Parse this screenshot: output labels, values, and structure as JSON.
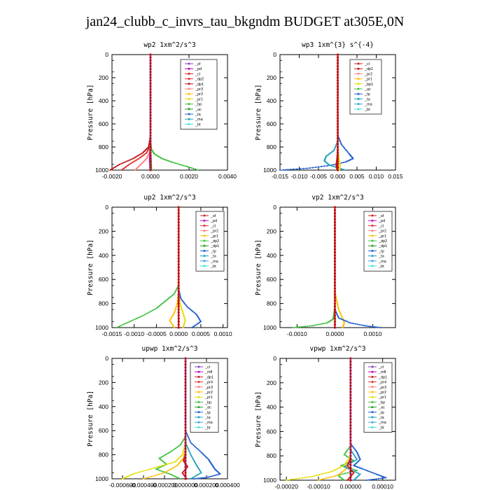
{
  "title": "jan24_clubb_c_invrs_tau_bkgndm  BUDGET at305E,0N",
  "chart_data": [
    {
      "type": "line",
      "title": "wp2   1xm^2/s^3",
      "ylabel": "Pressure  [hPa]",
      "xlim": [
        -0.002,
        0.004
      ],
      "ylim": [
        1000,
        0
      ],
      "xticks": [
        -0.002,
        0.0,
        0.002,
        0.004
      ],
      "xtick_labels": [
        "-0.0020",
        "0.0000",
        "0.0020",
        "0.0040"
      ],
      "yticks": [
        0,
        200,
        400,
        600,
        800,
        1000
      ],
      "legend": [
        "_sf",
        "_pd",
        "_cl",
        "_dp2",
        "_dp1",
        "_pr3",
        "_pr2",
        "_pr1",
        "_bp",
        "_ac",
        "_ta",
        "_ma",
        "_bt"
      ],
      "legend_colors": [
        "#8040c0",
        "#c000c0",
        "#d02020",
        "#e03030",
        "#c01010",
        "#ff8080",
        "#ffc000",
        "#e0e000",
        "#40c040",
        "#20a020",
        "#2060d0",
        "#20a0c0",
        "#40e0e0"
      ],
      "series": [
        {
          "name": "_dp2",
          "color": "#e03030",
          "x": [
            0,
            0,
            -5e-05,
            -0.0002,
            -0.0006,
            -0.0011,
            -0.0015
          ],
          "y": [
            0,
            700,
            800,
            850,
            900,
            950,
            1000
          ]
        },
        {
          "name": "_dp1",
          "color": "#c01010",
          "x": [
            0,
            0,
            -0.0001,
            -0.0004,
            -0.0009,
            -0.0016,
            -0.0021
          ],
          "y": [
            0,
            700,
            800,
            850,
            900,
            950,
            1000
          ]
        },
        {
          "name": "_pr3",
          "color": "#ff8080",
          "x": [
            0,
            0,
            -5e-05,
            -0.0002,
            -0.0005,
            -0.0008
          ],
          "y": [
            0,
            750,
            850,
            900,
            950,
            1000
          ]
        },
        {
          "name": "_bp",
          "color": "#40c040",
          "x": [
            0,
            0,
            5e-05,
            0.0002,
            0.0006,
            0.0011,
            0.0018,
            0.0025
          ],
          "y": [
            0,
            750,
            820,
            860,
            900,
            930,
            965,
            1000
          ]
        },
        {
          "name": "_pd",
          "color": "#c000c0",
          "x": [
            0,
            0,
            -5e-05,
            -2e-05
          ],
          "y": [
            0,
            800,
            900,
            1000
          ]
        },
        {
          "name": "_ac",
          "color": "#20a020",
          "x": [
            0,
            0,
            3e-05,
            5e-05
          ],
          "y": [
            0,
            800,
            900,
            1000
          ]
        },
        {
          "name": "_sf",
          "color": "#8040c0",
          "x": [
            0,
            0
          ],
          "y": [
            0,
            1000
          ]
        }
      ]
    },
    {
      "type": "line",
      "title": "wp3   1xm^{3} s^{-4}",
      "ylabel": "Pressure  [hPa]",
      "xlim": [
        -0.015,
        0.015
      ],
      "ylim": [
        1000,
        0
      ],
      "xticks": [
        -0.015,
        -0.01,
        -0.005,
        0.0,
        0.005,
        0.01,
        0.015
      ],
      "xtick_labels": [
        "-0.015",
        "-0.010",
        "-0.005",
        "0.000",
        "0.005",
        "0.010",
        "0.015"
      ],
      "yticks": [
        0,
        200,
        400,
        600,
        800,
        1000
      ],
      "legend": [
        "_cl",
        "_dp1",
        "_pr2",
        "_pr1",
        "_bp1",
        "_ac",
        "_tp",
        "_ta",
        "_ma",
        "_bt"
      ],
      "legend_colors": [
        "#d02020",
        "#c01010",
        "#ff8080",
        "#ffc000",
        "#e0e000",
        "#40c040",
        "#2060d0",
        "#20a0c0",
        "#40a0e0",
        "#40e0e0"
      ],
      "series": [
        {
          "name": "_tp",
          "color": "#2060d0",
          "x": [
            0,
            0,
            0.001,
            0.003,
            0.004,
            0.002,
            -0.002,
            -0.008,
            -0.015
          ],
          "y": [
            0,
            700,
            780,
            860,
            900,
            930,
            960,
            985,
            1000
          ]
        },
        {
          "name": "_ta",
          "color": "#20a0c0",
          "x": [
            0,
            0,
            -0.001,
            -0.003,
            -0.0035,
            -0.002,
            0.002
          ],
          "y": [
            0,
            750,
            830,
            880,
            920,
            960,
            1000
          ]
        },
        {
          "name": "_bp1",
          "color": "#e0e000",
          "x": [
            0,
            0,
            0.0003,
            0.0006,
            0.0004
          ],
          "y": [
            0,
            800,
            900,
            960,
            1000
          ]
        },
        {
          "name": "_dp1",
          "color": "#c01010",
          "x": [
            0,
            0,
            -0.0002,
            -0.0004,
            -0.0001
          ],
          "y": [
            0,
            800,
            900,
            960,
            1000
          ]
        },
        {
          "name": "_cl",
          "color": "#d02020",
          "x": [
            0,
            0
          ],
          "y": [
            0,
            1000
          ]
        }
      ]
    },
    {
      "type": "line",
      "title": "up2   1xm^2/s^3",
      "ylabel": "Pressure  [hPa]",
      "xlim": [
        -0.0015,
        0.0011
      ],
      "ylim": [
        1000,
        0
      ],
      "xticks": [
        -0.0015,
        -0.001,
        -0.0005,
        0.0,
        0.0005,
        0.001
      ],
      "xtick_labels": [
        "-0.0015",
        "-0.0010",
        "-0.0005",
        "0.0000",
        "0.0005",
        "0.0010"
      ],
      "yticks": [
        0,
        200,
        400,
        600,
        800,
        1000
      ],
      "legend": [
        "_sf",
        "_pd",
        "_cl",
        "_pr2",
        "_pr1",
        "_dp2",
        "_dp1",
        "_tp",
        "_ta",
        "_ma",
        "_bt"
      ],
      "legend_colors": [
        "#d02020",
        "#c000c0",
        "#e03030",
        "#ff8080",
        "#ffc000",
        "#40c040",
        "#20a020",
        "#2060d0",
        "#20a0c0",
        "#40a0e0",
        "#40e0e0"
      ],
      "series": [
        {
          "name": "_dp1",
          "color": "#40c040",
          "x": [
            0,
            0,
            -0.0001,
            -0.0003,
            -0.0005,
            -0.0008,
            -0.0011,
            -0.0014
          ],
          "y": [
            0,
            650,
            720,
            780,
            840,
            900,
            950,
            1000
          ]
        },
        {
          "name": "_tp",
          "color": "#2060d0",
          "x": [
            0,
            0,
            5e-05,
            0.0002,
            0.0004,
            0.0005,
            0.0003
          ],
          "y": [
            0,
            680,
            760,
            830,
            890,
            950,
            1000
          ]
        },
        {
          "name": "_pr2",
          "color": "#ffc000",
          "x": [
            0,
            0,
            -3e-05,
            -0.0001,
            -0.0002,
            -0.0001
          ],
          "y": [
            0,
            700,
            800,
            880,
            940,
            1000
          ]
        },
        {
          "name": "_pr1",
          "color": "#e0e000",
          "x": [
            0,
            0,
            3e-05,
            0.0001,
            0.00015,
            0.0001
          ],
          "y": [
            0,
            700,
            800,
            880,
            940,
            1000
          ]
        },
        {
          "name": "_sf",
          "color": "#d02020",
          "x": [
            0,
            0
          ],
          "y": [
            0,
            1000
          ]
        }
      ]
    },
    {
      "type": "line",
      "title": "vp2   1xm^2/s^3",
      "ylabel": "Pressure  [hPa]",
      "xlim": [
        -0.00145,
        0.0016
      ],
      "ylim": [
        1000,
        0
      ],
      "xticks": [
        -0.001,
        0.0,
        0.001
      ],
      "xtick_labels": [
        "-0.0010",
        "0.0000",
        "0.0010"
      ],
      "yticks": [
        0,
        200,
        400,
        600,
        800,
        1000
      ],
      "legend": [
        "_sf",
        "_pd",
        "_cl",
        "_pr2",
        "_pr1",
        "_dp2",
        "_dp1",
        "_tp",
        "_ta",
        "_ma",
        "_bt"
      ],
      "legend_colors": [
        "#d02020",
        "#c000c0",
        "#e03030",
        "#ff8080",
        "#ffc000",
        "#40c040",
        "#20a020",
        "#2060d0",
        "#20a0c0",
        "#40a0e0",
        "#40e0e0"
      ],
      "series": [
        {
          "name": "_pr2",
          "color": "#ffc000",
          "x": [
            0,
            0,
            5e-05,
            0.0001,
            0.0002,
            0.00025,
            0.0002
          ],
          "y": [
            0,
            700,
            780,
            850,
            920,
            960,
            1000
          ]
        },
        {
          "name": "_dp1",
          "color": "#40c040",
          "x": [
            0,
            0,
            -2e-05,
            -5e-05,
            -0.0002,
            -0.0006,
            -0.0011
          ],
          "y": [
            0,
            800,
            880,
            930,
            960,
            985,
            1000
          ]
        },
        {
          "name": "_tp",
          "color": "#2060d0",
          "x": [
            0,
            0,
            0.0001,
            0.0004,
            0.0008,
            0.0012
          ],
          "y": [
            0,
            850,
            920,
            960,
            985,
            1000
          ]
        },
        {
          "name": "_sf",
          "color": "#d02020",
          "x": [
            0,
            0
          ],
          "y": [
            0,
            1000
          ]
        }
      ]
    },
    {
      "type": "line",
      "title": "upwp   1xm^2/s^3",
      "ylabel": "Pressure  [hPa]",
      "xlim": [
        -0.0007,
        0.0004
      ],
      "ylim": [
        1000,
        0
      ],
      "xticks": [
        -0.0006,
        -0.0004,
        -0.0002,
        0.0,
        0.0002,
        0.0004
      ],
      "xtick_labels": [
        "-0.000600",
        "-0.000400",
        "-0.000200",
        "0.000000",
        "0.000200",
        "0.000400"
      ],
      "yticks": [
        0,
        200,
        400,
        600,
        800,
        1000
      ],
      "legend": [
        "_cl",
        "_mfl",
        "_dp1",
        "_pr4",
        "_pr3",
        "_pr2",
        "_pr1",
        "_bp",
        "_ac",
        "_tp",
        "_ta",
        "_ma",
        "_bt"
      ],
      "legend_colors": [
        "#8040c0",
        "#c000c0",
        "#d02020",
        "#e03030",
        "#ff8080",
        "#ffc000",
        "#e0e000",
        "#40c040",
        "#20a020",
        "#2060d0",
        "#20a0c0",
        "#40a0e0",
        "#40e0e0"
      ],
      "series": [
        {
          "name": "_tp",
          "color": "#2060d0",
          "x": [
            0,
            0,
            5e-05,
            0.00015,
            0.00022,
            0.00025,
            0.00028,
            0.00033,
            0.0002,
            8e-05
          ],
          "y": [
            0,
            600,
            700,
            780,
            840,
            880,
            920,
            960,
            990,
            1000
          ]
        },
        {
          "name": "_bp",
          "color": "#40c040",
          "x": [
            0,
            0,
            -5e-05,
            -0.00015,
            -0.00025,
            -0.00018,
            -0.00028,
            -0.00015,
            -5e-05
          ],
          "y": [
            0,
            650,
            720,
            780,
            830,
            880,
            920,
            960,
            1000
          ]
        },
        {
          "name": "_pr1",
          "color": "#e0e000",
          "x": [
            0,
            0,
            -3e-05,
            -0.0001,
            -0.0003,
            -0.0005,
            -0.0006
          ],
          "y": [
            0,
            700,
            800,
            860,
            910,
            960,
            1000
          ]
        },
        {
          "name": "_pr2",
          "color": "#ffc000",
          "x": [
            0,
            0,
            -2e-05,
            -8e-05,
            -0.0002,
            -0.0004
          ],
          "y": [
            0,
            750,
            830,
            890,
            950,
            1000
          ]
        },
        {
          "name": "_ta",
          "color": "#20a0c0",
          "x": [
            0,
            0,
            5e-05,
            0.0001,
            0.00015,
            5e-05
          ],
          "y": [
            0,
            700,
            800,
            880,
            950,
            1000
          ]
        },
        {
          "name": "_dp1",
          "color": "#d02020",
          "x": [
            0,
            0,
            -2e-05,
            2e-05,
            -3e-05,
            1e-05
          ],
          "y": [
            0,
            800,
            850,
            900,
            950,
            1000
          ]
        },
        {
          "name": "_cl",
          "color": "#8040c0",
          "x": [
            0,
            0
          ],
          "y": [
            0,
            1000
          ]
        }
      ]
    },
    {
      "type": "line",
      "title": "vpwp   1xm^2/s^3",
      "ylabel": "Pressure  [hPa]",
      "xlim": [
        -0.00022,
        0.00014
      ],
      "ylim": [
        1000,
        0
      ],
      "xticks": [
        -0.0002,
        -0.0001,
        0.0,
        0.0001
      ],
      "xtick_labels": [
        "-0.00020",
        "-0.00010",
        "0.00000",
        "0.00010"
      ],
      "yticks": [
        0,
        200,
        400,
        600,
        800,
        1000
      ],
      "legend": [
        "_cl",
        "_mfl",
        "_dp1",
        "_pr4",
        "_pr3",
        "_pr2",
        "_pr1",
        "_bp",
        "_ac",
        "_tp",
        "_ta",
        "_ma",
        "_bt"
      ],
      "legend_colors": [
        "#8040c0",
        "#c000c0",
        "#d02020",
        "#e03030",
        "#ff8080",
        "#ffc000",
        "#e0e000",
        "#40c040",
        "#20a020",
        "#2060d0",
        "#20a0c0",
        "#40a0e0",
        "#40e0e0"
      ],
      "series": [
        {
          "name": "_tp",
          "color": "#2060d0",
          "x": [
            0,
            0,
            2e-05,
            3e-05,
            1e-05,
            4e-05,
            8e-05,
            0.00011,
            5e-05
          ],
          "y": [
            0,
            700,
            770,
            830,
            880,
            910,
            950,
            980,
            1000
          ]
        },
        {
          "name": "_bp",
          "color": "#40c040",
          "x": [
            0,
            0,
            -2e-05,
            1e-05,
            -3e-05,
            2e-05,
            -4e-05,
            -2e-05
          ],
          "y": [
            0,
            720,
            790,
            840,
            880,
            920,
            960,
            1000
          ]
        },
        {
          "name": "_pr1",
          "color": "#e0e000",
          "x": [
            0,
            0,
            -2e-05,
            -6e-05,
            -0.00012,
            -0.0002
          ],
          "y": [
            0,
            800,
            880,
            930,
            970,
            1000
          ]
        },
        {
          "name": "_pr2",
          "color": "#ffc000",
          "x": [
            0,
            0,
            -1e-05,
            -4e-05,
            -0.0001
          ],
          "y": [
            0,
            820,
            900,
            960,
            1000
          ]
        },
        {
          "name": "_ta",
          "color": "#20a0c0",
          "x": [
            0,
            0,
            2e-05,
            -2e-05,
            3e-05,
            1e-05
          ],
          "y": [
            0,
            750,
            830,
            890,
            950,
            1000
          ]
        },
        {
          "name": "_dp1",
          "color": "#d02020",
          "x": [
            0,
            0,
            -1e-05,
            1e-05,
            -1e-05
          ],
          "y": [
            0,
            820,
            880,
            940,
            1000
          ]
        },
        {
          "name": "_cl",
          "color": "#8040c0",
          "x": [
            0,
            0
          ],
          "y": [
            0,
            1000
          ]
        }
      ]
    }
  ]
}
